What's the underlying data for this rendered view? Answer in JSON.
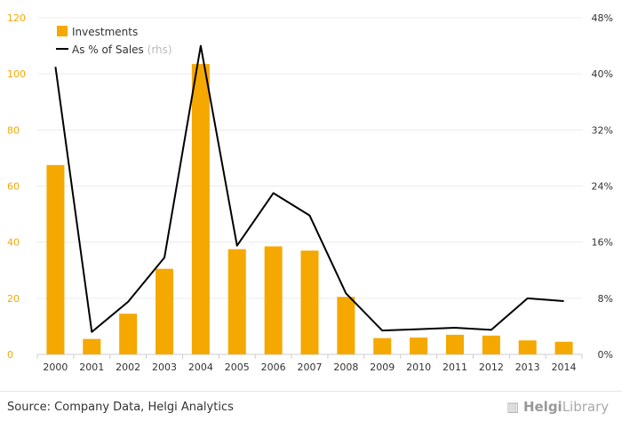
{
  "chart_data": {
    "type": "bar",
    "categories": [
      "2000",
      "2001",
      "2002",
      "2003",
      "2004",
      "2005",
      "2006",
      "2007",
      "2008",
      "2009",
      "2010",
      "2011",
      "2012",
      "2013",
      "2014"
    ],
    "series": [
      {
        "name": "Investments",
        "type": "bar",
        "axis": "left",
        "color": "#F5A800",
        "values": [
          67.5,
          5.5,
          14.5,
          30.5,
          103.5,
          37.5,
          38.5,
          37,
          20.5,
          5.8,
          6,
          7,
          6.7,
          5,
          4.5
        ]
      },
      {
        "name": "As % of Sales",
        "name_suffix": "(rhs)",
        "type": "line",
        "axis": "right",
        "color": "#000000",
        "values": [
          41,
          3.2,
          7.5,
          13.8,
          44,
          15.5,
          23,
          19.8,
          8.7,
          3.4,
          3.6,
          3.8,
          3.5,
          8,
          7.6
        ]
      }
    ],
    "yaxis_left": {
      "min": 0,
      "max": 120,
      "ticks": [
        "0",
        "20",
        "40",
        "60",
        "80",
        "100",
        "120"
      ],
      "tick_color": "#F5A800"
    },
    "yaxis_right": {
      "min": 0,
      "max": 48,
      "ticks": [
        "0%",
        "8%",
        "16%",
        "24%",
        "32%",
        "40%",
        "48%"
      ]
    },
    "legend_position": "top-left",
    "grid": true
  },
  "footer": {
    "source": "Source: Company Data, Helgi Analytics",
    "logo_left": "Helgi",
    "logo_right": "Library"
  }
}
